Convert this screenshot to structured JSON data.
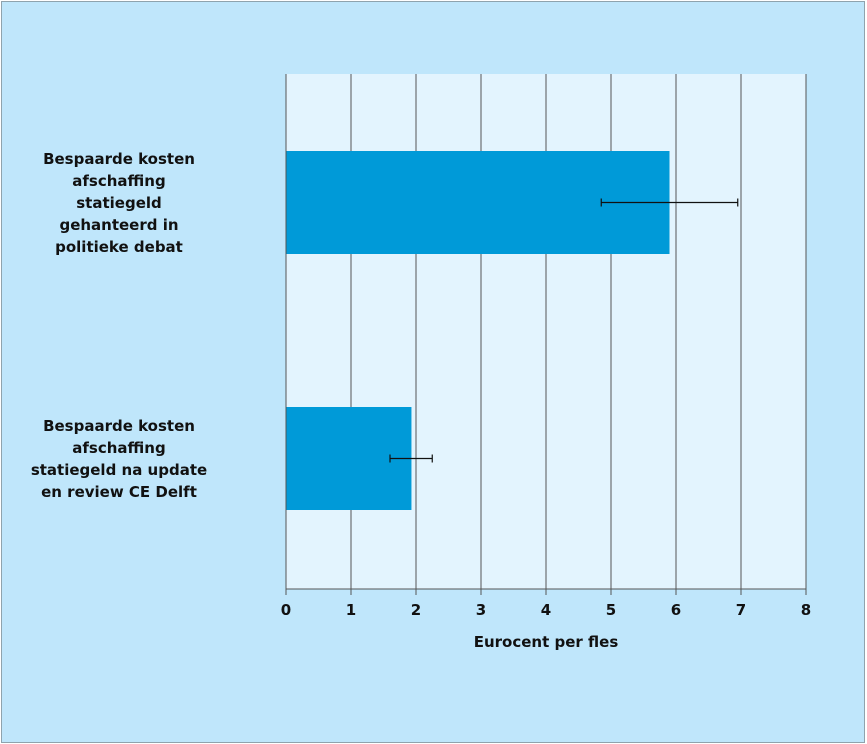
{
  "colors": {
    "outer_bg": "#bfe6fb",
    "plot_bg": "#e3f4fe",
    "bar": "#009ad8",
    "grid": "#555555",
    "error_bar": "#111111"
  },
  "chart_data": {
    "type": "bar",
    "orientation": "horizontal",
    "categories": [
      [
        "Bespaarde kosten",
        "afschaffing",
        "statiegeld",
        "gehanteerd in",
        "politieke debat"
      ],
      [
        "Bespaarde kosten",
        "afschaffing",
        "statiegeld na update",
        "en review CE Delft"
      ]
    ],
    "values": [
      5.9,
      1.93
    ],
    "error_bars": [
      {
        "low": 4.85,
        "high": 6.95
      },
      {
        "low": 1.6,
        "high": 2.25
      }
    ],
    "xlabel": "Eurocent per fles",
    "xlim": [
      0,
      8
    ],
    "xticks": [
      "0",
      "1",
      "2",
      "3",
      "4",
      "5",
      "6",
      "7",
      "8"
    ],
    "grid": true
  }
}
